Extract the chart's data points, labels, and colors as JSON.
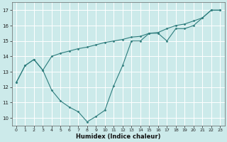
{
  "xlabel": "Humidex (Indice chaleur)",
  "bg_color": "#cceaea",
  "line_color": "#2e7d7d",
  "marker": "D",
  "markersize": 1.5,
  "linewidth": 0.8,
  "xlim": [
    -0.5,
    23.5
  ],
  "ylim": [
    9.5,
    17.5
  ],
  "xticks": [
    0,
    1,
    2,
    3,
    4,
    5,
    6,
    7,
    8,
    9,
    10,
    11,
    12,
    13,
    14,
    15,
    16,
    17,
    18,
    19,
    20,
    21,
    22,
    23
  ],
  "yticks": [
    10,
    11,
    12,
    13,
    14,
    15,
    16,
    17
  ],
  "grid_color": "#ffffff",
  "series1_x": [
    0,
    1,
    2,
    3,
    4,
    5,
    6,
    7,
    8,
    9,
    10,
    11,
    12,
    13,
    14,
    15,
    16,
    17,
    18,
    19,
    20,
    21,
    22,
    23
  ],
  "series1_y": [
    12.3,
    13.4,
    13.8,
    13.1,
    11.8,
    11.1,
    10.7,
    10.4,
    9.75,
    10.1,
    10.5,
    12.1,
    13.4,
    15.0,
    15.0,
    15.5,
    15.5,
    15.0,
    15.8,
    15.8,
    16.0,
    16.5,
    17.0,
    17.0
  ],
  "series2_x": [
    0,
    1,
    2,
    3,
    4,
    5,
    6,
    7,
    8,
    9,
    10,
    11,
    12,
    13,
    14,
    15,
    16,
    17,
    18,
    19,
    20,
    21,
    22,
    23
  ],
  "series2_y": [
    12.3,
    13.4,
    13.8,
    13.1,
    14.0,
    14.2,
    14.35,
    14.5,
    14.6,
    14.75,
    14.9,
    15.0,
    15.1,
    15.25,
    15.3,
    15.5,
    15.55,
    15.8,
    16.0,
    16.1,
    16.3,
    16.5,
    17.0,
    17.0
  ]
}
